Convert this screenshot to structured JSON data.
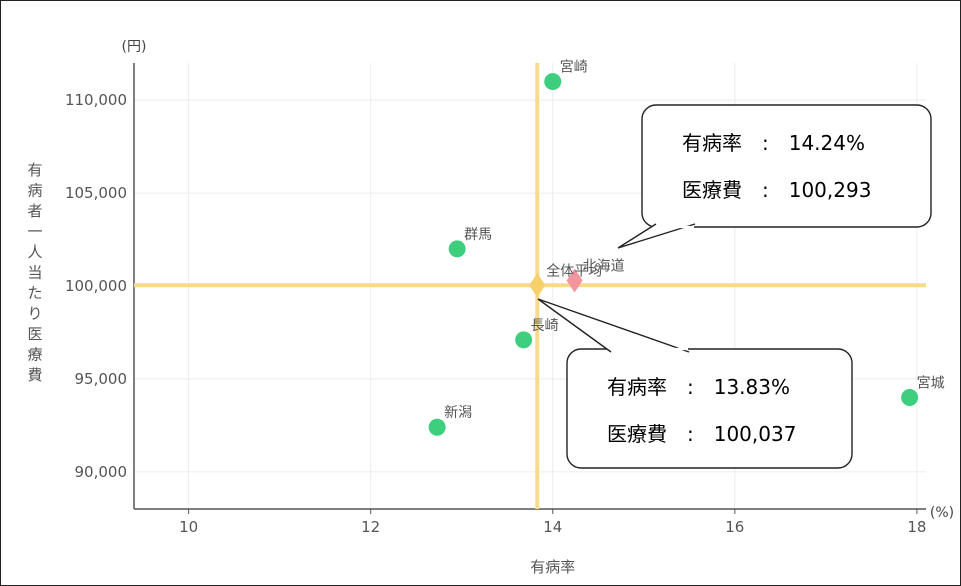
{
  "chart_data": {
    "type": "scatter",
    "xlabel": "有病率",
    "ylabel": "有病者一人当たり医療費",
    "x_unit": "(%)",
    "y_unit": "(円)",
    "xlim": [
      9.4,
      18.1
    ],
    "ylim": [
      88000,
      112000
    ],
    "xticks": [
      10,
      12,
      14,
      16,
      18
    ],
    "yticks": [
      90000,
      95000,
      100000,
      105000,
      110000
    ],
    "ytick_labels": [
      "90,000",
      "95,000",
      "100,000",
      "105,000",
      "110,000"
    ],
    "grid": true,
    "points": [
      {
        "label": "宮崎",
        "x": 14.0,
        "y": 111000,
        "kind": "prefecture"
      },
      {
        "label": "群馬",
        "x": 12.95,
        "y": 102000,
        "kind": "prefecture"
      },
      {
        "label": "長崎",
        "x": 13.68,
        "y": 97100,
        "kind": "prefecture"
      },
      {
        "label": "新潟",
        "x": 12.73,
        "y": 92400,
        "kind": "prefecture"
      },
      {
        "label": "宮城",
        "x": 17.92,
        "y": 94000,
        "kind": "prefecture"
      },
      {
        "label": "北海道",
        "x": 14.24,
        "y": 100293,
        "kind": "highlight"
      },
      {
        "label": "全体平均",
        "x": 13.83,
        "y": 100037,
        "kind": "average"
      }
    ],
    "reference_lines": {
      "x": 13.83,
      "y": 100037
    },
    "callouts": [
      {
        "target": "北海道",
        "line1": "有病率　:　14.24%",
        "line2": "医療費　:　100,293"
      },
      {
        "target": "全体平均",
        "line1": "有病率　:　13.83%",
        "line2": "医療費　:　100,037"
      }
    ],
    "colors": {
      "prefecture": "#3dcf7e",
      "highlight": "#f3959f",
      "average": "#f7cf6b",
      "reference_line": "#f9d98a",
      "grid": "#ececec",
      "axis": "#555555"
    }
  }
}
